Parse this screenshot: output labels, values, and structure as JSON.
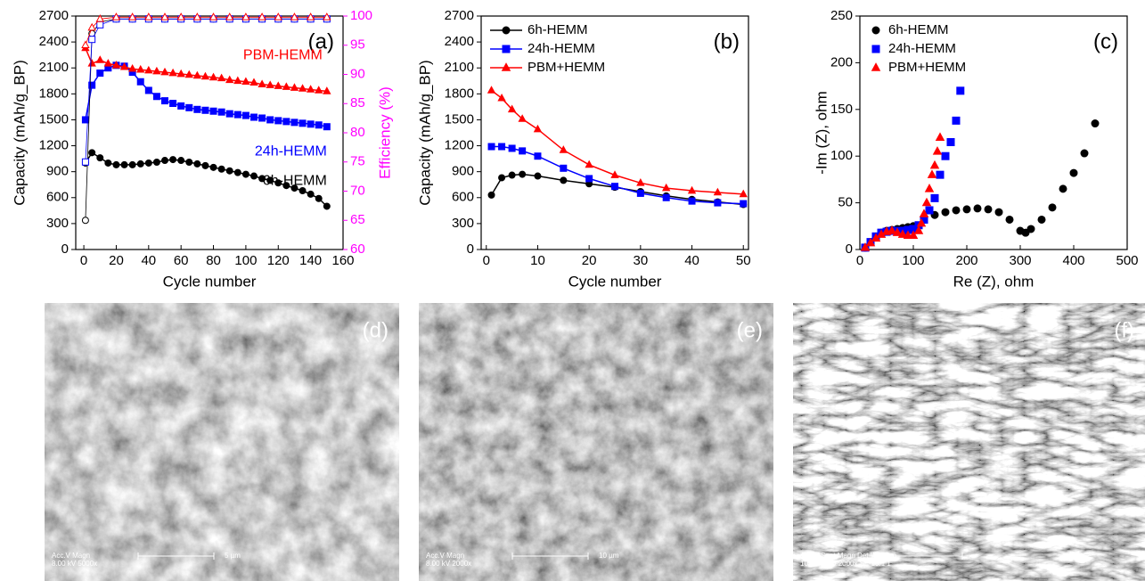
{
  "chart_data": [
    {
      "type": "line",
      "panel_label": "(a)",
      "xlabel": "Cycle number",
      "ylabel": "Capacity (mAh/g_BP)",
      "y2label": "Efficiency (%)",
      "y2color": "#ff00ff",
      "xlim": [
        -5,
        160
      ],
      "xticks": [
        0,
        20,
        40,
        60,
        80,
        100,
        120,
        140,
        160
      ],
      "ylim": [
        0,
        2700
      ],
      "yticks": [
        0,
        300,
        600,
        900,
        1200,
        1500,
        1800,
        2100,
        2400,
        2700
      ],
      "y2lim": [
        60,
        100
      ],
      "y2ticks": [
        60,
        65,
        70,
        75,
        80,
        85,
        90,
        95,
        100
      ],
      "legend": "inline",
      "series": [
        {
          "name": "6h-HEMM",
          "color": "#000000",
          "marker": "circle",
          "filled": true,
          "x": [
            1,
            5,
            10,
            15,
            20,
            25,
            30,
            35,
            40,
            45,
            50,
            55,
            60,
            65,
            70,
            75,
            80,
            85,
            90,
            95,
            100,
            105,
            110,
            115,
            120,
            125,
            130,
            135,
            140,
            145,
            150
          ],
          "values": [
            1000,
            1120,
            1060,
            1000,
            980,
            980,
            980,
            990,
            1000,
            1010,
            1030,
            1040,
            1030,
            1010,
            990,
            970,
            950,
            930,
            910,
            890,
            870,
            850,
            820,
            800,
            770,
            740,
            710,
            680,
            640,
            590,
            500
          ]
        },
        {
          "name": "24h-HEMM",
          "color": "#0000ff",
          "marker": "square",
          "filled": true,
          "x": [
            1,
            5,
            10,
            15,
            20,
            25,
            30,
            35,
            40,
            45,
            50,
            55,
            60,
            65,
            70,
            75,
            80,
            85,
            90,
            95,
            100,
            105,
            110,
            115,
            120,
            125,
            130,
            135,
            140,
            145,
            150
          ],
          "values": [
            1500,
            1900,
            2040,
            2100,
            2130,
            2120,
            2050,
            1940,
            1840,
            1770,
            1720,
            1690,
            1660,
            1640,
            1620,
            1610,
            1600,
            1590,
            1570,
            1560,
            1550,
            1530,
            1520,
            1500,
            1490,
            1480,
            1470,
            1460,
            1450,
            1440,
            1420
          ]
        },
        {
          "name": "PBM-HEMM",
          "color": "#ff0000",
          "marker": "triangle",
          "filled": true,
          "x": [
            1,
            5,
            10,
            15,
            20,
            25,
            30,
            35,
            40,
            45,
            50,
            55,
            60,
            65,
            70,
            75,
            80,
            85,
            90,
            95,
            100,
            105,
            110,
            115,
            120,
            125,
            130,
            135,
            140,
            145,
            150
          ],
          "values": [
            2330,
            2150,
            2190,
            2150,
            2130,
            2110,
            2090,
            2080,
            2070,
            2060,
            2050,
            2040,
            2030,
            2020,
            2010,
            2000,
            1990,
            1980,
            1960,
            1950,
            1940,
            1930,
            1910,
            1900,
            1890,
            1880,
            1870,
            1860,
            1850,
            1840,
            1830
          ]
        },
        {
          "color": "#000000",
          "marker": "circle",
          "filled": false,
          "axis": "y2",
          "x": [
            1,
            5,
            10,
            20,
            30,
            40,
            50,
            60,
            70,
            80,
            90,
            100,
            110,
            120,
            130,
            140,
            150
          ],
          "values": [
            65,
            97,
            99,
            99.5,
            99.5,
            99.5,
            99.5,
            99.5,
            99.5,
            99.5,
            99.5,
            99.5,
            99.5,
            99.5,
            99.5,
            99.5,
            99.5
          ]
        },
        {
          "color": "#0000ff",
          "marker": "square",
          "filled": false,
          "axis": "y2",
          "x": [
            1,
            5,
            10,
            20,
            30,
            40,
            50,
            60,
            70,
            80,
            90,
            100,
            110,
            120,
            130,
            140,
            150
          ],
          "values": [
            75,
            96,
            98.5,
            99.5,
            99.5,
            99.5,
            99.5,
            99.5,
            99.5,
            99.5,
            99.5,
            99.5,
            99.5,
            99.5,
            99.5,
            99.5,
            99.5
          ]
        },
        {
          "color": "#ff0000",
          "marker": "triangle",
          "filled": false,
          "axis": "y2",
          "x": [
            1,
            5,
            10,
            20,
            30,
            40,
            50,
            60,
            70,
            80,
            90,
            100,
            110,
            120,
            130,
            140,
            150
          ],
          "values": [
            95,
            98,
            99.5,
            99.8,
            99.8,
            99.8,
            99.8,
            99.8,
            99.8,
            99.8,
            99.8,
            99.8,
            99.8,
            99.8,
            99.8,
            99.8,
            99.8
          ]
        }
      ]
    },
    {
      "type": "line",
      "panel_label": "(b)",
      "xlabel": "Cycle number",
      "ylabel": "Capacity (mAh/g_BP)",
      "xlim": [
        -1,
        51
      ],
      "xticks": [
        0,
        10,
        20,
        30,
        40,
        50
      ],
      "ylim": [
        0,
        2700
      ],
      "yticks": [
        0,
        300,
        600,
        900,
        1200,
        1500,
        1800,
        2100,
        2400,
        2700
      ],
      "legend": "upper left",
      "series": [
        {
          "name": "6h-HEMM",
          "color": "#000000",
          "marker": "circle",
          "filled": true,
          "x": [
            1,
            3,
            5,
            7,
            10,
            15,
            20,
            25,
            30,
            35,
            40,
            45,
            50
          ],
          "values": [
            630,
            830,
            860,
            870,
            850,
            800,
            760,
            720,
            670,
            620,
            580,
            550,
            520
          ]
        },
        {
          "name": "24h-HEMM",
          "color": "#0000ff",
          "marker": "square",
          "filled": true,
          "x": [
            1,
            3,
            5,
            7,
            10,
            15,
            20,
            25,
            30,
            35,
            40,
            45,
            50
          ],
          "values": [
            1190,
            1190,
            1170,
            1140,
            1080,
            940,
            820,
            730,
            650,
            600,
            560,
            540,
            530
          ]
        },
        {
          "name": "PBM+HEMM",
          "color": "#ff0000",
          "marker": "triangle",
          "filled": true,
          "x": [
            1,
            3,
            5,
            7,
            10,
            15,
            20,
            25,
            30,
            35,
            40,
            45,
            50
          ],
          "values": [
            1840,
            1750,
            1620,
            1510,
            1390,
            1150,
            980,
            860,
            770,
            710,
            680,
            660,
            640
          ]
        }
      ]
    },
    {
      "type": "scatter",
      "panel_label": "(c)",
      "xlabel": "Re (Z), ohm",
      "ylabel": "-Im (Z), ohm",
      "xlim": [
        0,
        500
      ],
      "xticks": [
        0,
        100,
        200,
        300,
        400,
        500
      ],
      "ylim": [
        0,
        250
      ],
      "yticks": [
        0,
        50,
        100,
        150,
        200,
        250
      ],
      "legend": "upper left",
      "series": [
        {
          "name": "6h-HEMM",
          "color": "#000000",
          "marker": "circle",
          "filled": true,
          "x": [
            10,
            20,
            30,
            40,
            50,
            60,
            70,
            80,
            90,
            100,
            120,
            140,
            160,
            180,
            200,
            220,
            240,
            260,
            280,
            300,
            310,
            320,
            340,
            360,
            380,
            400,
            420,
            440
          ],
          "values": [
            2,
            8,
            14,
            18,
            20,
            21,
            22,
            23,
            24,
            25,
            32,
            37,
            40,
            42,
            43,
            44,
            43,
            40,
            32,
            20,
            18,
            22,
            32,
            45,
            65,
            82,
            103,
            135
          ]
        },
        {
          "name": "24h-HEMM",
          "color": "#0000ff",
          "marker": "square",
          "filled": true,
          "x": [
            10,
            20,
            30,
            40,
            50,
            60,
            70,
            80,
            90,
            100,
            110,
            120,
            130,
            140,
            150,
            160,
            170,
            180,
            188
          ],
          "values": [
            2,
            8,
            14,
            18,
            19,
            20,
            20,
            20,
            21,
            22,
            26,
            32,
            42,
            55,
            80,
            100,
            115,
            138,
            170
          ]
        },
        {
          "name": "PBM+HEMM",
          "color": "#ff0000",
          "marker": "triangle",
          "filled": true,
          "x": [
            10,
            20,
            30,
            40,
            50,
            60,
            70,
            80,
            90,
            100,
            110,
            115,
            120,
            125,
            130,
            135,
            140,
            145,
            150
          ],
          "values": [
            2,
            7,
            12,
            16,
            19,
            20,
            18,
            16,
            15,
            15,
            20,
            28,
            38,
            50,
            65,
            80,
            90,
            105,
            120
          ]
        }
      ]
    }
  ],
  "images": [
    {
      "label": "(d)",
      "info": [
        "Acc.V   Magn",
        "8.00 kV 5000x"
      ],
      "scale_bar": "5 µm"
    },
    {
      "label": "(e)",
      "info": [
        "Acc.V   Magn",
        "8.00 kV 2000x"
      ],
      "scale_bar": "10 µm"
    },
    {
      "label": "(f)",
      "info": [
        "Acc.V  Spot Magn    Det  WD  Exp",
        "10.0 kV 4.0  2000x   SE  10.1  1"
      ]
    }
  ]
}
